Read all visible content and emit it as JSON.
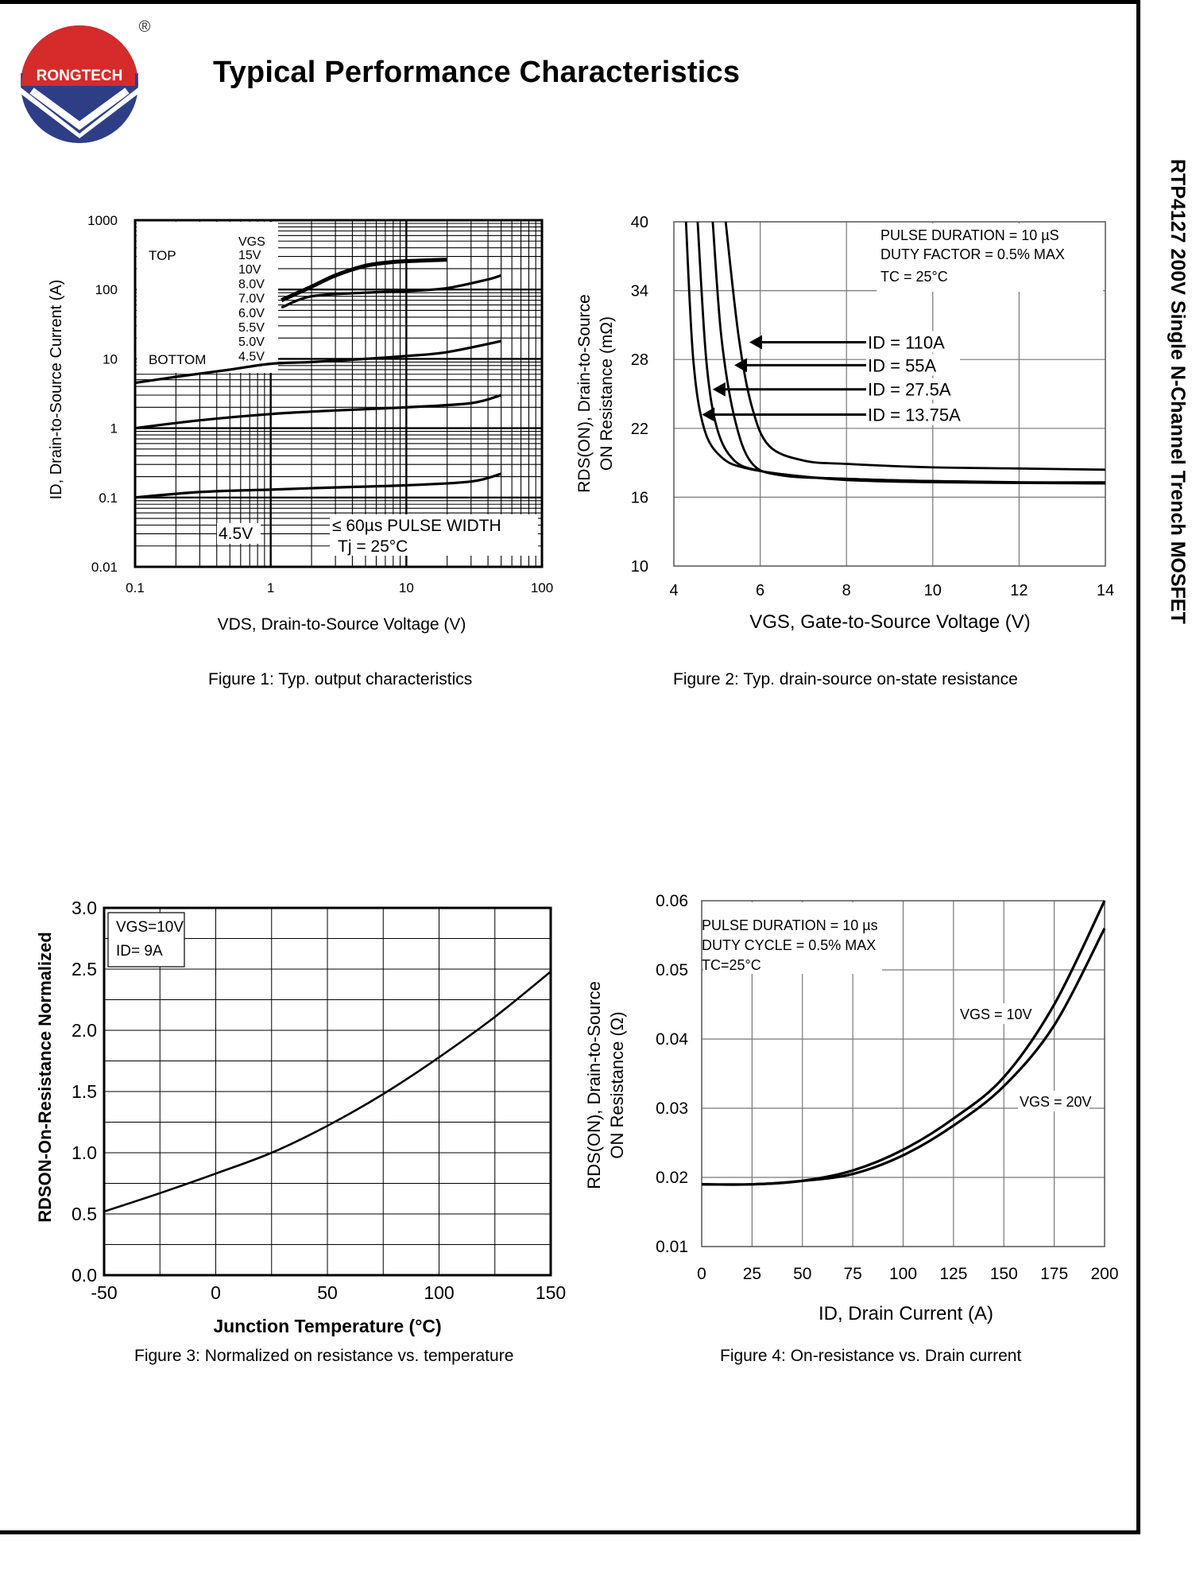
{
  "header": {
    "brand": "RONGTECH",
    "registered_mark": "®",
    "title": "Typical Performance Characteristics",
    "side_title": "RTP4127 200V Single N-Channel Trench MOSFET"
  },
  "colors": {
    "logo_red": "#d62b2b",
    "logo_blue": "#2e3e86",
    "ink": "#000000"
  },
  "chart_data": [
    {
      "id": "fig1",
      "type": "line",
      "title": "Figure 1: Typ. output characteristics",
      "xlabel": "VDS, Drain-to-Source Voltage (V)",
      "ylabel": "ID, Drain-to-Source Current (A)",
      "xscale": "log",
      "yscale": "log",
      "xlim": [
        0.1,
        100
      ],
      "ylim": [
        0.01,
        1000
      ],
      "xticks": [
        "0.1",
        "1",
        "10",
        "100"
      ],
      "yticks": [
        "1000",
        "100",
        "10",
        "1",
        "0.1",
        "0.01"
      ],
      "legend": {
        "header": "VGS",
        "top_label": "TOP",
        "bottom_label": "BOTTOM",
        "entries": [
          "15V",
          "10V",
          "8.0V",
          "7.0V",
          "6.0V",
          "5.5V",
          "5.0V",
          "4.5V"
        ]
      },
      "annotations": [
        "4.5V",
        "≤ 60µs PULSE WIDTH",
        "Tj = 25°C"
      ],
      "series": [
        {
          "name": "15V",
          "x": [
            1.2,
            2,
            3,
            5,
            8,
            12,
            20
          ],
          "y": [
            70,
            110,
            160,
            220,
            250,
            260,
            270
          ]
        },
        {
          "name": "10V",
          "x": [
            1.2,
            2,
            5,
            10,
            20,
            40,
            50
          ],
          "y": [
            55,
            80,
            90,
            95,
            105,
            140,
            160
          ]
        },
        {
          "name": "6.0V",
          "x": [
            0.1,
            0.2,
            0.5,
            1,
            2,
            5,
            10,
            20,
            50
          ],
          "y": [
            4.5,
            5.5,
            7,
            8.5,
            9,
            10,
            11,
            12.5,
            18
          ]
        },
        {
          "name": "5.0V",
          "x": [
            0.1,
            0.3,
            1,
            3,
            10,
            30,
            50
          ],
          "y": [
            1,
            1.3,
            1.6,
            1.8,
            2,
            2.3,
            3
          ]
        },
        {
          "name": "4.5V",
          "x": [
            0.1,
            0.3,
            1,
            3,
            10,
            30,
            50
          ],
          "y": [
            0.1,
            0.12,
            0.13,
            0.14,
            0.15,
            0.17,
            0.22
          ]
        }
      ]
    },
    {
      "id": "fig2",
      "type": "line",
      "title": "Figure 2: Typ. drain-source on-state resistance",
      "xlabel": "VGS, Gate-to-Source Voltage (V)",
      "ylabel_line1": "RDS(ON), Drain-to-Source",
      "ylabel_line2": "ON Resistance (mΩ)",
      "xlim": [
        4,
        14
      ],
      "ylim": [
        10,
        40
      ],
      "xticks": [
        "4",
        "6",
        "8",
        "10",
        "12",
        "14"
      ],
      "yticks": [
        "40",
        "34",
        "28",
        "22",
        "16",
        "10"
      ],
      "notes": [
        "PULSE DURATION = 10 µS",
        "DUTY FACTOR = 0.5% MAX",
        "TC = 25°C"
      ],
      "series": [
        {
          "name": "ID = 110A",
          "x": [
            5.2,
            5.5,
            5.8,
            6.2,
            7,
            8,
            10,
            12,
            14
          ],
          "y": [
            40,
            30,
            24,
            20.5,
            19.2,
            18.9,
            18.6,
            18.5,
            18.4
          ]
        },
        {
          "name": "ID = 55A",
          "x": [
            4.9,
            5.1,
            5.4,
            5.8,
            6.5,
            8,
            10,
            12,
            14
          ],
          "y": [
            40,
            30,
            23,
            19,
            17.9,
            17.6,
            17.4,
            17.3,
            17.3
          ]
        },
        {
          "name": "ID = 27.5A",
          "x": [
            4.55,
            4.75,
            5.0,
            5.4,
            6,
            7,
            8,
            10,
            14
          ],
          "y": [
            40,
            28,
            22,
            19.2,
            18.3,
            17.8,
            17.5,
            17.3,
            17.2
          ]
        },
        {
          "name": "ID = 13.75A",
          "x": [
            4.28,
            4.45,
            4.7,
            5.1,
            5.7,
            7,
            8,
            10,
            14
          ],
          "y": [
            40,
            28,
            22,
            19.5,
            18.5,
            17.8,
            17.6,
            17.4,
            17.2
          ]
        }
      ]
    },
    {
      "id": "fig3",
      "type": "line",
      "title": "Figure 3: Normalized on resistance vs. temperature",
      "xlabel": "Junction Temperature (°C)",
      "ylabel": "RDSON-On-Resistance Normalized",
      "xlim": [
        -50,
        150
      ],
      "ylim": [
        0,
        3.0
      ],
      "xticks": [
        "-50",
        "0",
        "50",
        "100",
        "150"
      ],
      "yticks": [
        "3.0",
        "2.5",
        "2.0",
        "1.5",
        "1.0",
        "0.5",
        "0.0"
      ],
      "legend_lines": [
        "VGS=10V",
        "ID=  9A"
      ],
      "series": [
        {
          "name": "VGS=10V, ID=9A",
          "x": [
            -50,
            -25,
            0,
            25,
            50,
            75,
            100,
            125,
            150
          ],
          "y": [
            0.52,
            0.67,
            0.83,
            1.0,
            1.22,
            1.48,
            1.78,
            2.11,
            2.48
          ]
        }
      ]
    },
    {
      "id": "fig4",
      "type": "line",
      "title": "Figure 4: On-resistance vs. Drain current",
      "xlabel": "ID, Drain Current (A)",
      "ylabel_line1": "RDS(ON), Drain-to-Source",
      "ylabel_line2": "ON Resistance (Ω)",
      "xlim": [
        0,
        200
      ],
      "ylim": [
        0.01,
        0.06
      ],
      "xticks": [
        "0",
        "25",
        "50",
        "75",
        "100",
        "125",
        "150",
        "175",
        "200"
      ],
      "yticks": [
        "0.06",
        "0.05",
        "0.04",
        "0.03",
        "0.02",
        "0.01"
      ],
      "notes": [
        "PULSE DURATION = 10 µs",
        "DUTY CYCLE = 0.5% MAX",
        "TC=25°C"
      ],
      "series": [
        {
          "name": "VGS = 10V",
          "x": [
            0,
            25,
            50,
            75,
            100,
            125,
            150,
            175,
            200
          ],
          "y": [
            0.019,
            0.019,
            0.0195,
            0.021,
            0.024,
            0.0285,
            0.0345,
            0.045,
            0.06
          ]
        },
        {
          "name": "VGS = 20V",
          "x": [
            0,
            25,
            50,
            75,
            100,
            125,
            150,
            175,
            200
          ],
          "y": [
            0.019,
            0.019,
            0.0195,
            0.0205,
            0.0232,
            0.0275,
            0.0332,
            0.042,
            0.056
          ]
        }
      ]
    }
  ]
}
